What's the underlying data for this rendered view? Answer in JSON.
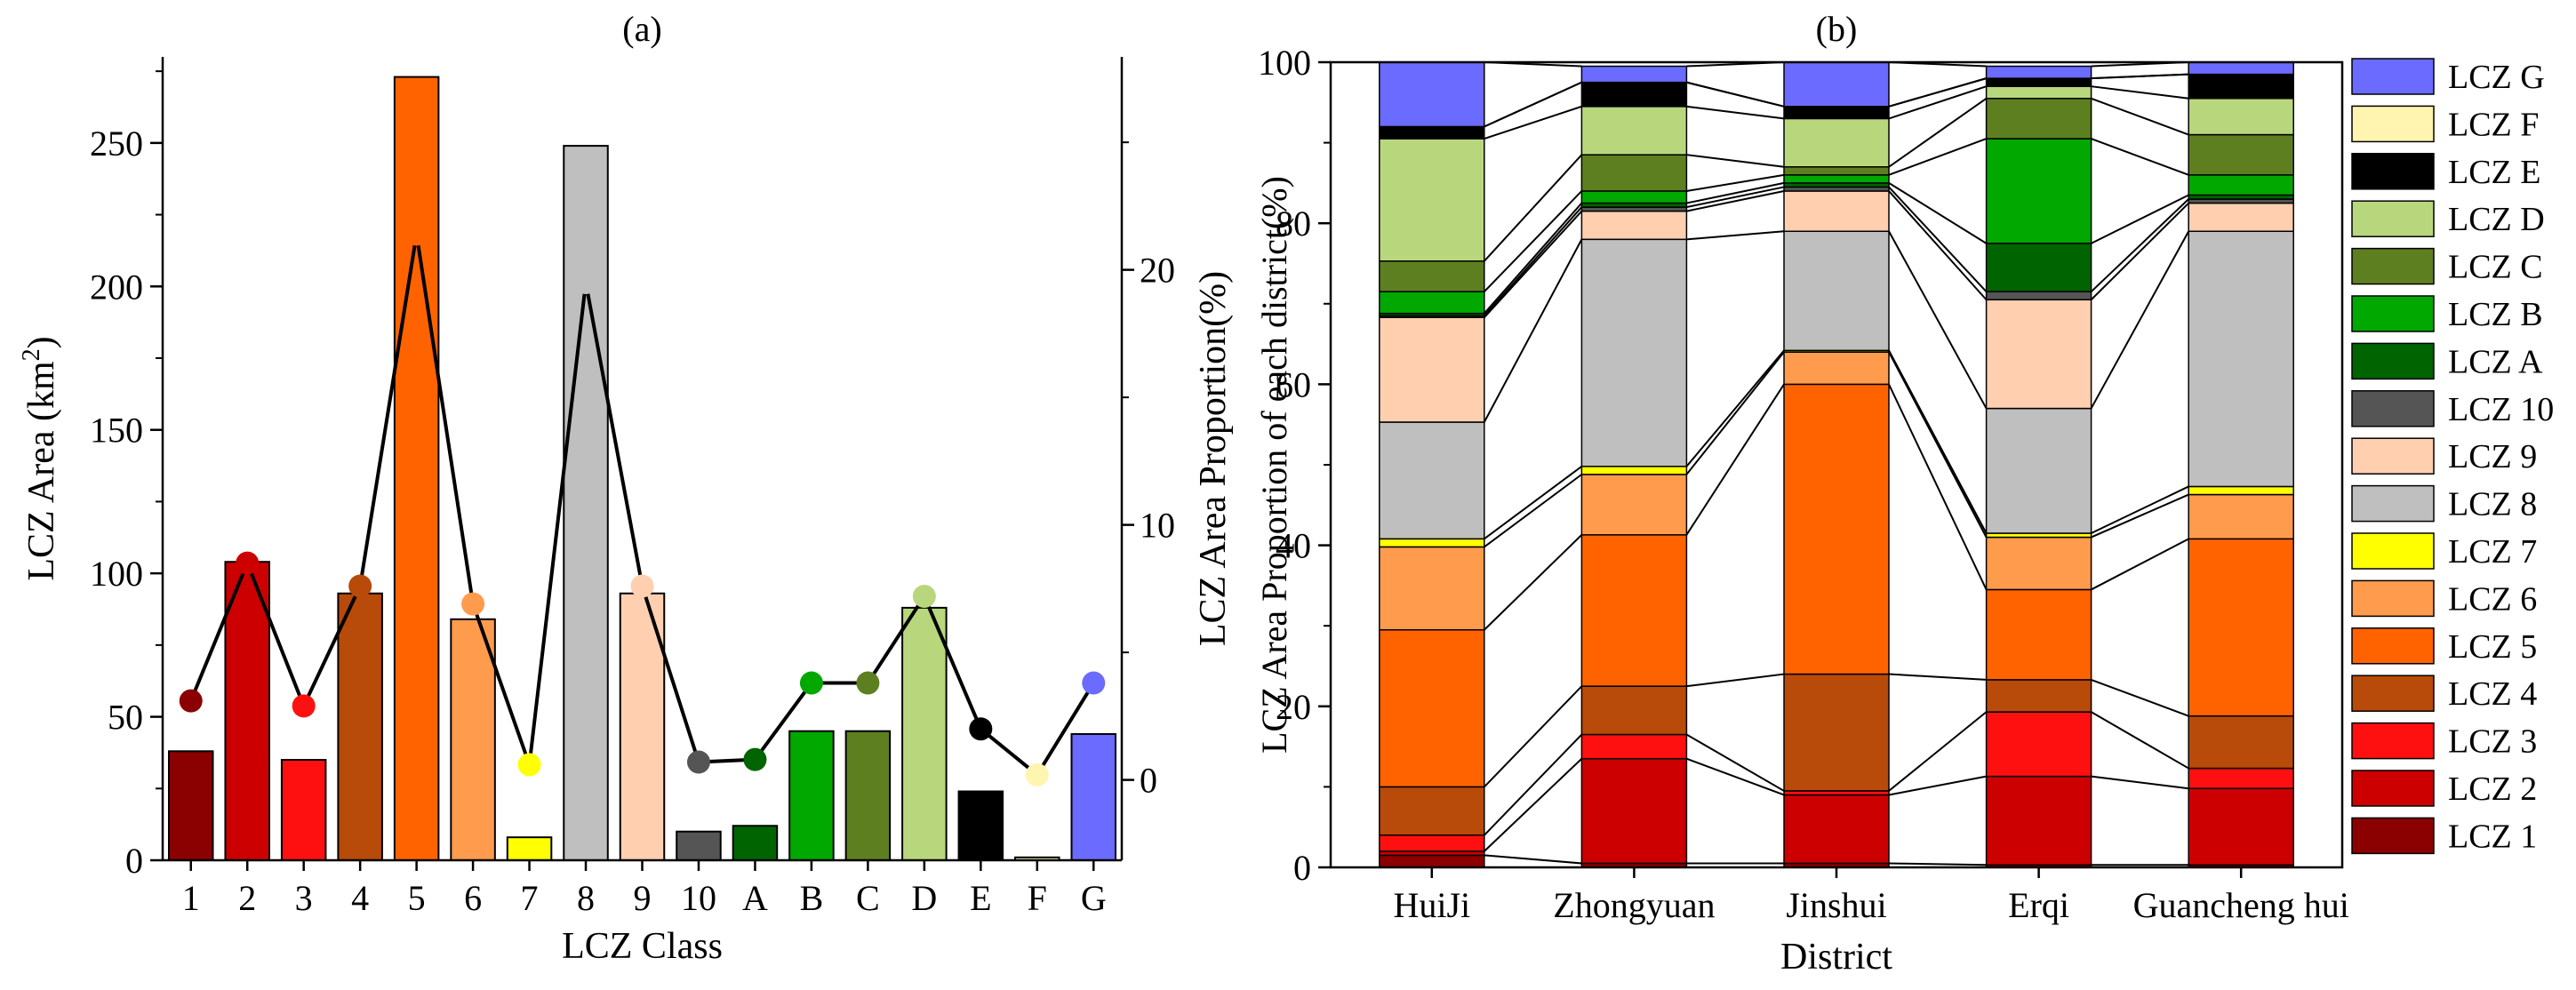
{
  "chart_data": [
    {
      "panel": "(a)",
      "type": "bar",
      "xlabel": "LCZ Class",
      "ylabel": "LCZ Area (km",
      "ylabel_sup": "2",
      "ylabel_close": ")",
      "y2label": "LCZ Area Proportion(%)",
      "ylim": [
        0,
        280
      ],
      "yticks": [
        0,
        50,
        100,
        150,
        200,
        250
      ],
      "y2lim": [
        -3.15,
        28.35
      ],
      "y2ticks": [
        0,
        10,
        20
      ],
      "categories": [
        "1",
        "2",
        "3",
        "4",
        "5",
        "6",
        "7",
        "8",
        "9",
        "10",
        "A",
        "B",
        "C",
        "D",
        "E",
        "F",
        "G"
      ],
      "values": [
        38,
        104,
        35,
        93,
        273,
        84,
        8,
        249,
        93,
        10,
        12,
        45,
        45,
        88,
        24,
        1,
        44
      ],
      "proportions": [
        3.1,
        8.5,
        2.9,
        7.6,
        21.4,
        6.9,
        0.6,
        19.5,
        7.6,
        0.7,
        0.8,
        3.8,
        3.8,
        7.2,
        2.0,
        0.2,
        3.8
      ],
      "colors": [
        "#8B0000",
        "#CC0000",
        "#FF1010",
        "#B84A0A",
        "#FF6300",
        "#FF9B4D",
        "#FFFF00",
        "#BFBFBF",
        "#FFCFB0",
        "#555555",
        "#006400",
        "#00A800",
        "#5E7F20",
        "#B8D77C",
        "#000000",
        "#FFF4B0",
        "#6B6BFF"
      ]
    },
    {
      "panel": "(b)",
      "type": "bar",
      "stacked": true,
      "xlabel": "District",
      "ylabel": "LCZ Area Proportion of each district(%)",
      "ylim": [
        0,
        100
      ],
      "yticks": [
        0,
        20,
        40,
        60,
        80,
        100
      ],
      "categories": [
        "HuiJi",
        "Zhongyuan",
        "Jinshui",
        "Erqi",
        "Guancheng hui"
      ],
      "series": [
        {
          "name": "LCZ 1",
          "color": "#8B0000",
          "values": [
            1.5,
            0.5,
            0.5,
            0.3,
            0.3
          ]
        },
        {
          "name": "LCZ 2",
          "color": "#CC0000",
          "values": [
            0.5,
            13.0,
            8.5,
            11.0,
            9.5
          ]
        },
        {
          "name": "LCZ 3",
          "color": "#FF1010",
          "values": [
            2.0,
            3.0,
            0.5,
            8.0,
            2.5
          ]
        },
        {
          "name": "LCZ 4",
          "color": "#B84A0A",
          "values": [
            6.0,
            6.0,
            14.5,
            4.0,
            6.5
          ]
        },
        {
          "name": "LCZ 5",
          "color": "#FF6300",
          "values": [
            19.5,
            18.8,
            36.0,
            11.2,
            22.0
          ]
        },
        {
          "name": "LCZ 6",
          "color": "#FF9B4D",
          "values": [
            10.3,
            7.5,
            4.0,
            6.5,
            5.5
          ]
        },
        {
          "name": "LCZ 7",
          "color": "#FFFF00",
          "values": [
            1.0,
            1.0,
            0.2,
            0.5,
            1.0
          ]
        },
        {
          "name": "LCZ 8",
          "color": "#BFBFBF",
          "values": [
            14.5,
            28.2,
            14.8,
            15.5,
            31.7
          ]
        },
        {
          "name": "LCZ 9",
          "color": "#FFCFB0",
          "values": [
            13.0,
            3.5,
            5.0,
            13.5,
            3.5
          ]
        },
        {
          "name": "LCZ 10",
          "color": "#555555",
          "values": [
            0.2,
            0.5,
            0.5,
            1.0,
            0.5
          ]
        },
        {
          "name": "LCZ A",
          "color": "#006400",
          "values": [
            0.3,
            0.5,
            0.5,
            6.0,
            0.5
          ]
        },
        {
          "name": "LCZ B",
          "color": "#00A800",
          "values": [
            2.7,
            1.5,
            1.0,
            13.0,
            2.5
          ]
        },
        {
          "name": "LCZ C",
          "color": "#5E7F20",
          "values": [
            3.8,
            4.5,
            1.0,
            5.0,
            5.0
          ]
        },
        {
          "name": "LCZ D",
          "color": "#B8D77C",
          "values": [
            15.2,
            6.0,
            6.0,
            1.5,
            4.5
          ]
        },
        {
          "name": "LCZ E",
          "color": "#000000",
          "values": [
            1.5,
            3.0,
            1.5,
            1.0,
            3.0
          ]
        },
        {
          "name": "LCZ F",
          "color": "#FFF4B0",
          "values": [
            0.0,
            0.0,
            0.0,
            0.0,
            0.0
          ]
        },
        {
          "name": "LCZ G",
          "color": "#6B6BFF",
          "values": [
            8.0,
            2.0,
            5.5,
            1.5,
            1.5
          ]
        }
      ]
    }
  ]
}
